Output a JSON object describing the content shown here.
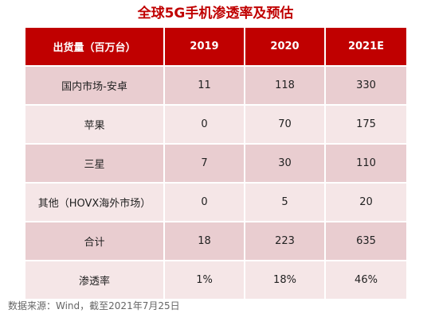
{
  "title": "全球5G手机渗透率及预估",
  "table": {
    "headers": [
      "出货量（百万台）",
      "2019",
      "2020",
      "2021E"
    ],
    "rows": [
      [
        "国内市场-安卓",
        "11",
        "118",
        "330"
      ],
      [
        "苹果",
        "0",
        "70",
        "175"
      ],
      [
        "三星",
        "7",
        "30",
        "110"
      ],
      [
        "其他（HOVX海外市场）",
        "0",
        "5",
        "20"
      ],
      [
        "合计",
        "18",
        "223",
        "635"
      ],
      [
        "渗透率",
        "1%",
        "18%",
        "46%"
      ]
    ]
  },
  "source": "数据来源：Wind，截至2021年7月25日",
  "colors": {
    "accent": "#c00000",
    "row_dark": "#e9cdd0",
    "row_light": "#f5e6e7"
  }
}
